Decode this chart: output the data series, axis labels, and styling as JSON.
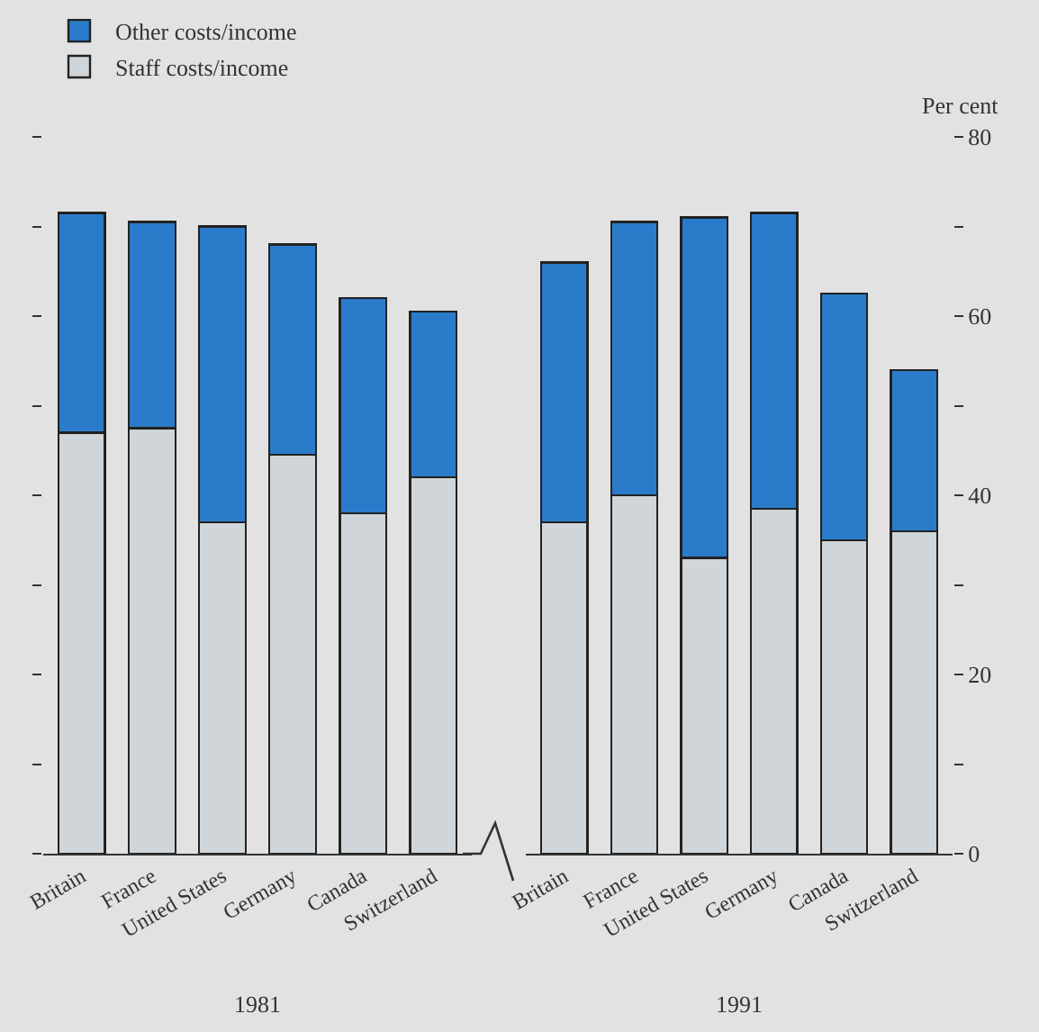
{
  "chart_data": [
    {
      "type": "bar",
      "xlabel": "1981",
      "categories": [
        "Britain",
        "France",
        "United States",
        "Germany",
        "Canada",
        "Switzerland"
      ],
      "stacked": true,
      "legend": "top left",
      "tick_labels": "x",
      "series": [
        {
          "name": "Staff costs/income",
          "color": "#cfd5d8",
          "values": [
            47,
            47.5,
            37,
            44.5,
            38,
            42
          ]
        },
        {
          "name": "Other costs/income",
          "color": "#2a7ccb",
          "values": [
            24.5,
            23,
            33,
            23.5,
            24,
            18.5
          ]
        }
      ],
      "ylim": [
        0,
        80
      ],
      "yticks": [
        0,
        10,
        20,
        30,
        40,
        50,
        60,
        70,
        80
      ]
    },
    {
      "type": "bar",
      "xlabel": "1991",
      "ylabel": "Per cent",
      "categories": [
        "Britain",
        "France",
        "United States",
        "Germany",
        "Canada",
        "Switzerland"
      ],
      "stacked": true,
      "series": [
        {
          "color": "#cfd5d8",
          "values": [
            37,
            40,
            33,
            38.5,
            35,
            36
          ]
        },
        {
          "color": "#2a7ccb",
          "values": [
            29,
            30.5,
            38,
            33,
            27.5,
            18
          ]
        }
      ],
      "ylim": [
        0,
        80
      ],
      "yticks": [
        0,
        {
          "value": 10,
          "label": null
        },
        20,
        {
          "value": 30,
          "label": null
        },
        40,
        {
          "value": 50,
          "label": null
        },
        60,
        {
          "value": 70,
          "label": null
        },
        80
      ]
    }
  ]
}
